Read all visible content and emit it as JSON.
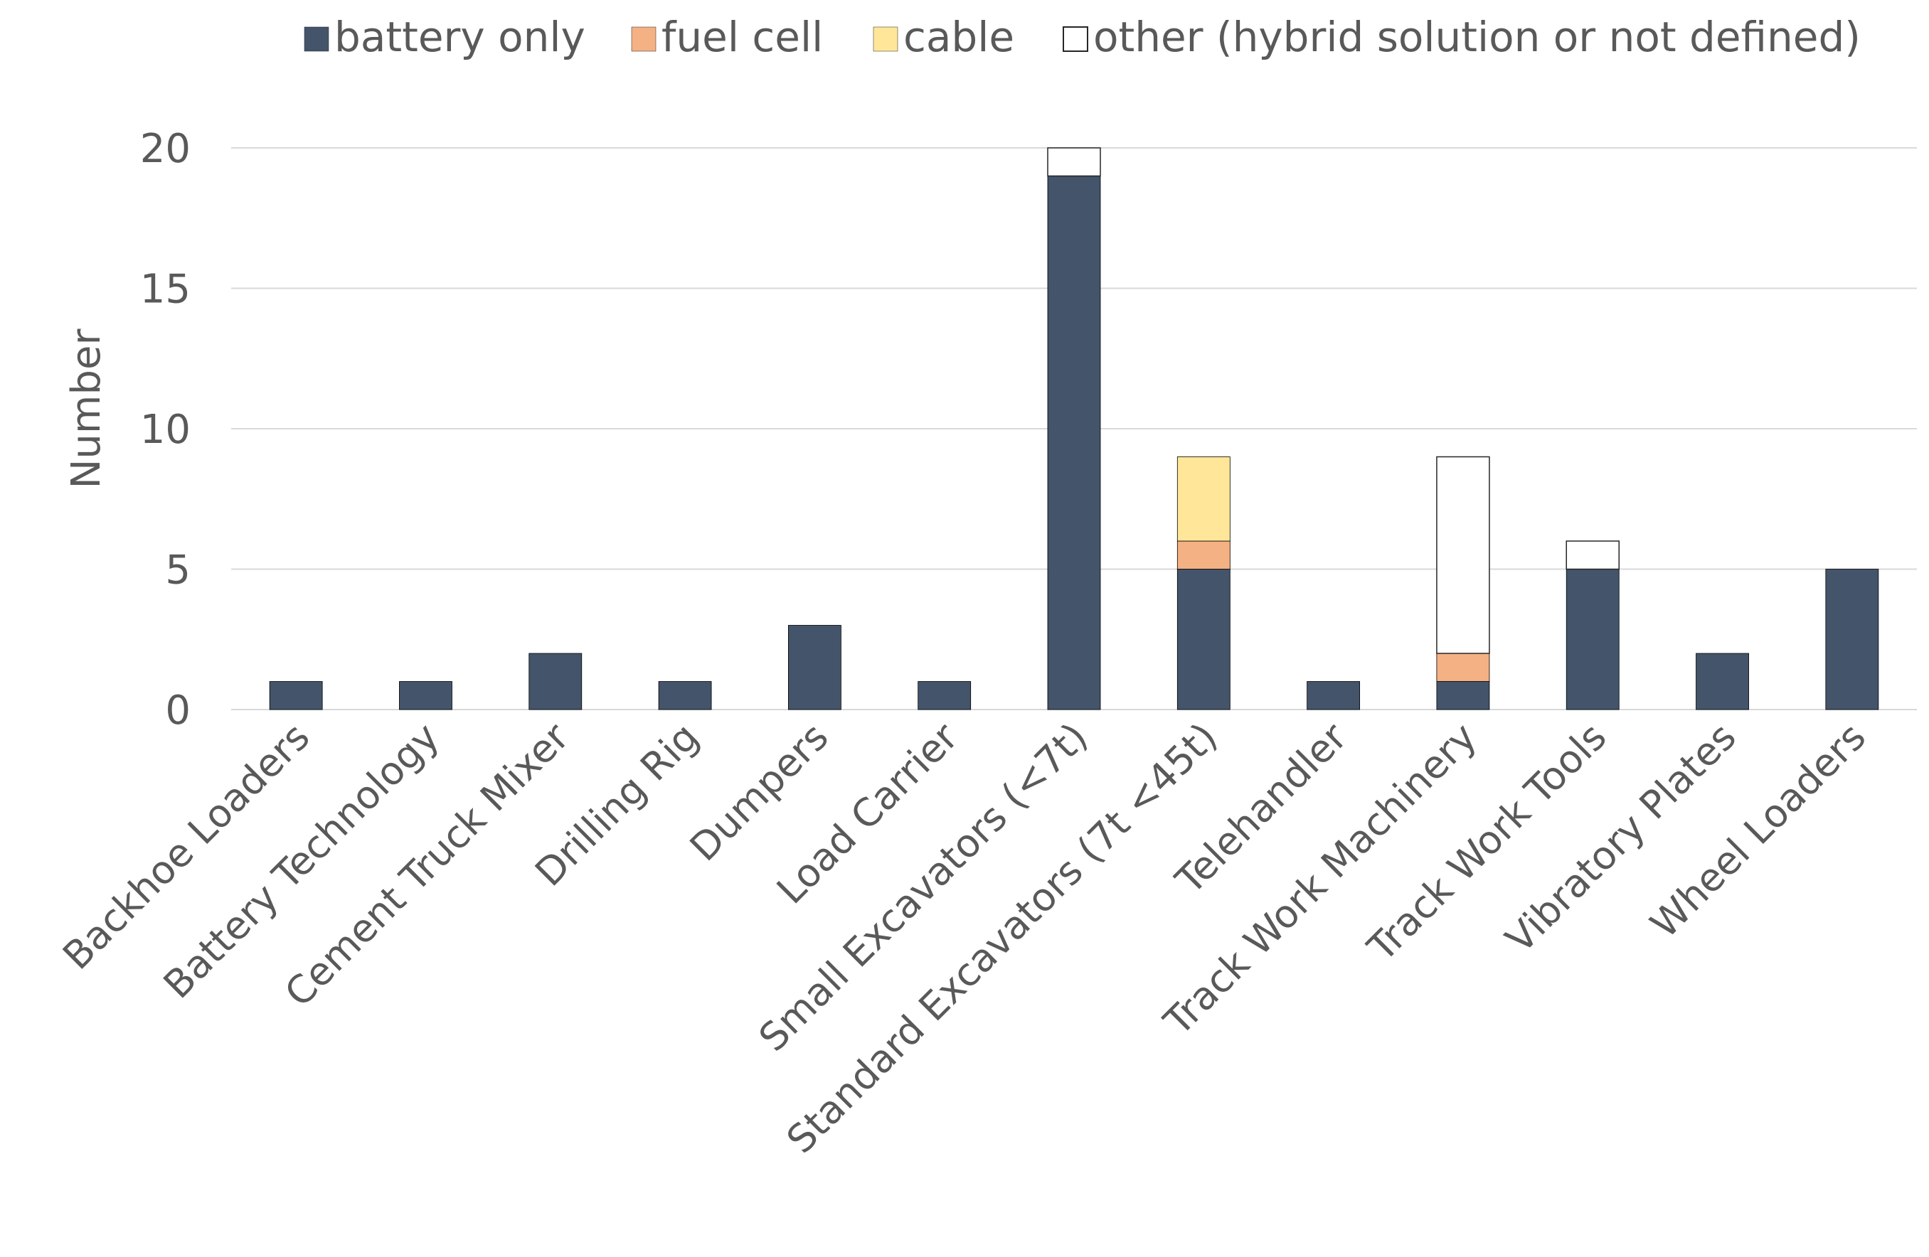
{
  "chart_data": {
    "type": "stacked-bar",
    "title": "",
    "xlabel": "",
    "ylabel": "Number",
    "ylim": [
      0,
      20
    ],
    "yticks": [
      0,
      5,
      10,
      15,
      20
    ],
    "grid": true,
    "legend_position": "top",
    "categories": [
      "Backhoe Loaders",
      "Battery Technology",
      "Cement Truck Mixer",
      "Drilling Rig",
      "Dumpers",
      "Load Carrier",
      "Small Excavators (<7t)",
      "Standard Excavators (7t <45t)",
      "Telehandler",
      "Track Work Machinery",
      "Track Work Tools",
      "Vibratory Plates",
      "Wheel Loaders"
    ],
    "series": [
      {
        "name": "battery only",
        "color": "#44546a",
        "values": [
          1,
          1,
          2,
          1,
          3,
          1,
          19,
          5,
          1,
          1,
          5,
          2,
          5
        ]
      },
      {
        "name": "fuel cell",
        "color": "#f4b183",
        "values": [
          0,
          0,
          0,
          0,
          0,
          0,
          0,
          1,
          0,
          1,
          0,
          0,
          0
        ]
      },
      {
        "name": "cable",
        "color": "#ffe699",
        "values": [
          0,
          0,
          0,
          0,
          0,
          0,
          0,
          3,
          0,
          0,
          0,
          0,
          0
        ]
      },
      {
        "name": "other (hybrid solution or not defined)",
        "color": "#ffffff",
        "values": [
          0,
          0,
          0,
          0,
          0,
          0,
          1,
          0,
          0,
          7,
          1,
          0,
          0
        ]
      }
    ]
  }
}
